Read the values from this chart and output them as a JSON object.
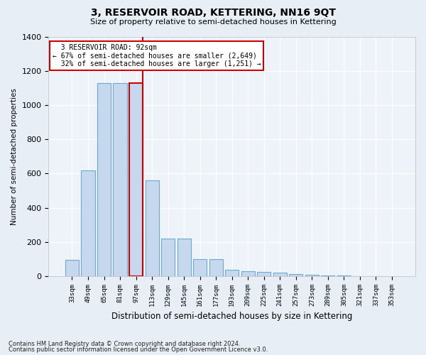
{
  "title": "3, RESERVOIR ROAD, KETTERING, NN16 9QT",
  "subtitle": "Size of property relative to semi-detached houses in Kettering",
  "xlabel": "Distribution of semi-detached houses by size in Kettering",
  "ylabel": "Number of semi-detached properties",
  "categories": [
    "33sqm",
    "49sqm",
    "65sqm",
    "81sqm",
    "97sqm",
    "113sqm",
    "129sqm",
    "145sqm",
    "161sqm",
    "177sqm",
    "193sqm",
    "209sqm",
    "225sqm",
    "241sqm",
    "257sqm",
    "273sqm",
    "289sqm",
    "305sqm",
    "321sqm",
    "337sqm",
    "353sqm"
  ],
  "values": [
    95,
    620,
    1130,
    1130,
    1130,
    560,
    220,
    220,
    100,
    100,
    40,
    30,
    25,
    20,
    15,
    10,
    5,
    3,
    2,
    1,
    0
  ],
  "bar_color": "#c5d8ee",
  "bar_edge_color": "#6aaad4",
  "highlight_bar_index": 4,
  "highlight_color": "#cc0000",
  "property_label": "3 RESERVOIR ROAD: 92sqm",
  "pct_smaller": "67%",
  "n_smaller": "2,649",
  "pct_larger": "32%",
  "n_larger": "1,251",
  "footer1": "Contains HM Land Registry data © Crown copyright and database right 2024.",
  "footer2": "Contains public sector information licensed under the Open Government Licence v3.0.",
  "ylim": [
    0,
    1400
  ],
  "yticks": [
    0,
    200,
    400,
    600,
    800,
    1000,
    1200,
    1400
  ],
  "bg_color": "#e8eef5",
  "plot_bg_color": "#eef3fa"
}
